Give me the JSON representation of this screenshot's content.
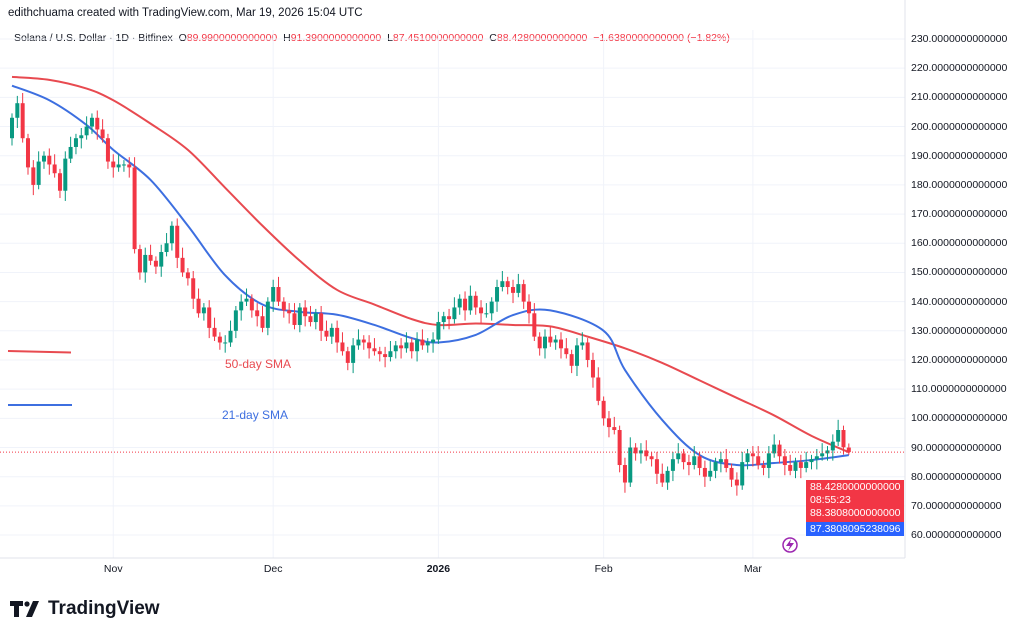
{
  "header": {
    "credit": "edithchuama created with TradingView.com, Mar 19, 2026 15:04 UTC",
    "symbol": "Solana / U.S. Dollar · 1D · Bitfinex",
    "o_label": "O",
    "o": "89.9900000000000",
    "h_label": "H",
    "h": "91.3900000000000",
    "l_label": "L",
    "l": "87.4510000000000",
    "c_label": "C",
    "c": "88.4280000000000",
    "change": "−1.6380000000000 (−1.82%)"
  },
  "price_tags": {
    "last": "88.4280000000000",
    "countdown": "08:55:23",
    "sma50": "88.3808000000000",
    "sma21": "87.3808095238096"
  },
  "sma_labels": {
    "sma50": "50-day SMA",
    "sma21": "21-day SMA"
  },
  "logo": "TradingView",
  "colors": {
    "up": "#089981",
    "down": "#f23645",
    "sma50": "#e84a50",
    "sma21": "#3d6fe0",
    "tag_blue": "#2962ff"
  },
  "chart_data": {
    "type": "candlestick",
    "title": "Solana / U.S. Dollar · 1D · Bitfinex",
    "start_date": "2025-10-13",
    "end_date": "2026-03-19",
    "ylim": [
      50,
      235
    ],
    "yticks": [
      "60.0000000000000",
      "70.0000000000000",
      "80.0000000000000",
      "90.0000000000000",
      "100.0000000000000",
      "110.0000000000000",
      "120.0000000000000",
      "130.0000000000000",
      "140.0000000000000",
      "150.0000000000000",
      "160.0000000000000",
      "170.0000000000000",
      "180.0000000000000",
      "190.0000000000000",
      "200.0000000000000",
      "210.0000000000000",
      "220.0000000000000",
      "230.0000000000000"
    ],
    "ytick_values": [
      60,
      70,
      80,
      90,
      100,
      110,
      120,
      130,
      140,
      150,
      160,
      170,
      180,
      190,
      200,
      210,
      220,
      230
    ],
    "xticks": [
      {
        "label": "Nov",
        "date": "2025-11-01",
        "bold": false
      },
      {
        "label": "Dec",
        "date": "2025-12-01",
        "bold": false
      },
      {
        "label": "2026",
        "date": "2026-01-01",
        "bold": true
      },
      {
        "label": "Feb",
        "date": "2026-02-01",
        "bold": false
      },
      {
        "label": "Mar",
        "date": "2026-03-01",
        "bold": false
      }
    ],
    "grid": true,
    "first_open": 196,
    "last_candle": {
      "open": 89.99,
      "high": 91.39,
      "low": 87.451,
      "close": 88.428
    },
    "close": [
      203,
      208,
      196,
      186,
      180,
      188,
      190,
      187,
      184,
      178,
      189,
      193,
      196,
      197,
      200,
      203,
      199,
      196,
      188,
      186,
      187,
      187,
      186,
      158,
      150,
      156,
      154,
      152,
      157,
      160,
      166,
      155,
      150,
      148,
      141,
      136,
      138,
      131,
      128,
      126,
      126,
      130,
      137,
      140,
      141,
      137,
      135,
      131,
      140,
      145,
      140,
      137,
      136,
      132,
      138,
      135,
      133,
      136,
      130,
      128,
      131,
      126,
      123,
      119,
      125,
      127,
      126,
      124,
      123,
      122,
      121,
      123,
      125,
      124,
      126,
      123,
      127,
      125,
      126,
      127,
      133,
      135,
      134,
      138,
      141,
      137,
      142,
      138,
      136,
      136,
      140,
      145,
      147,
      145,
      143,
      146,
      140,
      136,
      128,
      124,
      128,
      126,
      127,
      124,
      122,
      118,
      125,
      126,
      120,
      114,
      106,
      100,
      97,
      96,
      84,
      78,
      90,
      88,
      89,
      87,
      86,
      81,
      78,
      82,
      86,
      88,
      85,
      84,
      87,
      83,
      80,
      82,
      85,
      86,
      83,
      79,
      77,
      85,
      88,
      87,
      84,
      83,
      88,
      91,
      87,
      84,
      82,
      85,
      83,
      85,
      86,
      87,
      88,
      89,
      92,
      96,
      90.07,
      88.428
    ],
    "series": [
      {
        "name": "50-day SMA",
        "type": "line",
        "points": [
          [
            "2025-10-13",
            217
          ],
          [
            "2025-10-20",
            216
          ],
          [
            "2025-10-27",
            213
          ],
          [
            "2025-11-01",
            209
          ],
          [
            "2025-11-08",
            201
          ],
          [
            "2025-11-15",
            192
          ],
          [
            "2025-11-22",
            179
          ],
          [
            "2025-11-29",
            166
          ],
          [
            "2025-12-06",
            154
          ],
          [
            "2025-12-13",
            144
          ],
          [
            "2025-12-20",
            139
          ],
          [
            "2025-12-27",
            134
          ],
          [
            "2026-01-01",
            132
          ],
          [
            "2026-01-08",
            132.5
          ],
          [
            "2026-01-15",
            132
          ],
          [
            "2026-01-22",
            131.5
          ],
          [
            "2026-01-29",
            128
          ],
          [
            "2026-02-05",
            124
          ],
          [
            "2026-02-12",
            119
          ],
          [
            "2026-02-19",
            113
          ],
          [
            "2026-02-26",
            107
          ],
          [
            "2026-03-05",
            101
          ],
          [
            "2026-03-12",
            94
          ],
          [
            "2026-03-19",
            88.38
          ]
        ]
      },
      {
        "name": "21-day SMA",
        "type": "line",
        "points": [
          [
            "2025-10-13",
            214
          ],
          [
            "2025-10-20",
            209
          ],
          [
            "2025-10-27",
            200.5
          ],
          [
            "2025-11-01",
            192
          ],
          [
            "2025-11-08",
            181.7
          ],
          [
            "2025-11-15",
            166
          ],
          [
            "2025-11-22",
            149
          ],
          [
            "2025-11-29",
            139
          ],
          [
            "2025-12-06",
            136.5
          ],
          [
            "2025-12-13",
            135.5
          ],
          [
            "2025-12-20",
            132
          ],
          [
            "2025-12-27",
            127.5
          ],
          [
            "2026-01-01",
            126
          ],
          [
            "2026-01-08",
            128.6
          ],
          [
            "2026-01-15",
            135.4
          ],
          [
            "2026-01-22",
            137
          ],
          [
            "2026-02-01",
            130
          ],
          [
            "2026-02-05",
            116.6
          ],
          [
            "2026-02-12",
            99.4
          ],
          [
            "2026-02-19",
            87.4
          ],
          [
            "2026-02-26",
            84
          ],
          [
            "2026-03-05",
            84.7
          ],
          [
            "2026-03-12",
            85.7
          ],
          [
            "2026-03-19",
            87.38
          ]
        ]
      }
    ]
  }
}
